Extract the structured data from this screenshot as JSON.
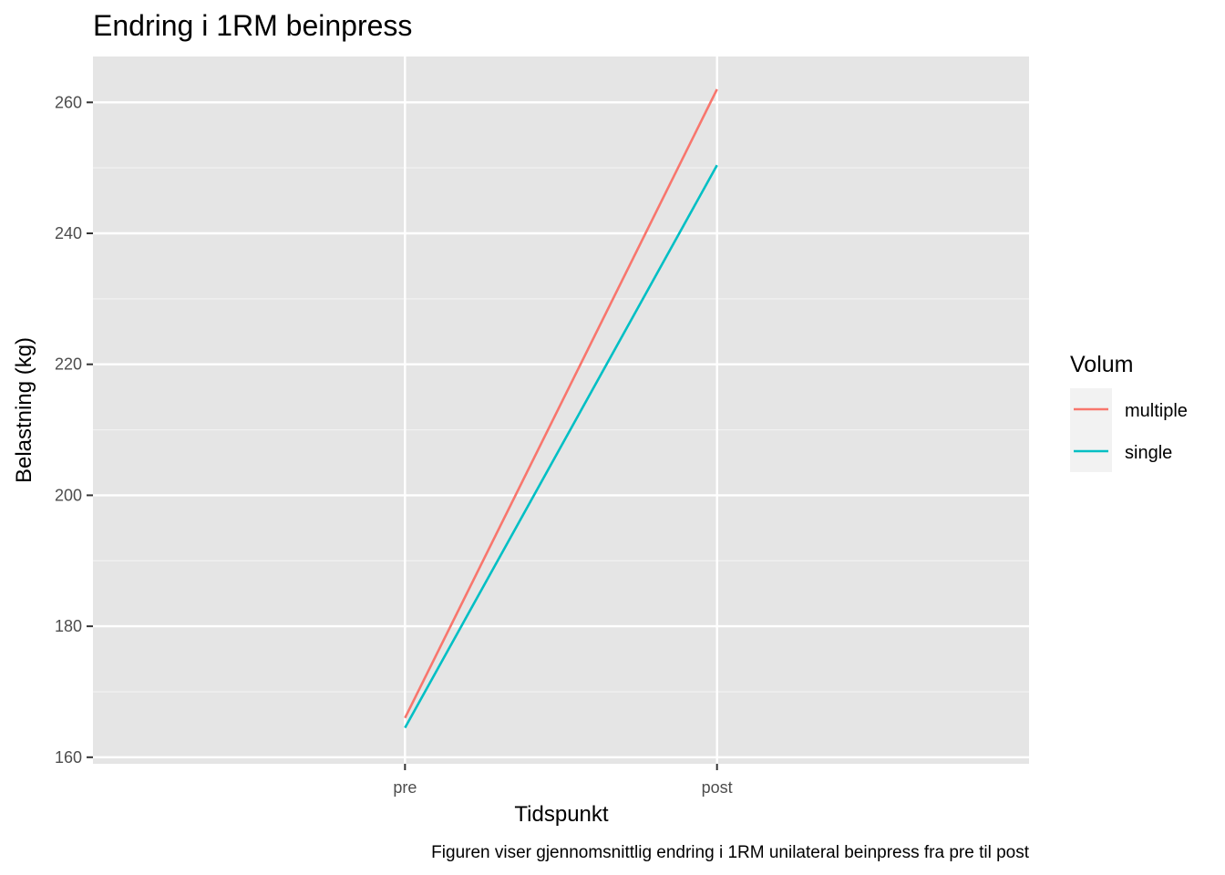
{
  "chart_data": {
    "type": "line",
    "title": "Endring i 1RM beinpress",
    "xlabel": "Tidspunkt",
    "ylabel": "Belastning (kg)",
    "caption": "Figuren viser gjennomsnittlig endring i 1RM unilateral beinpress fra pre til post",
    "categories": [
      "pre",
      "post"
    ],
    "ylim": [
      159,
      267
    ],
    "yticks": [
      160,
      180,
      200,
      220,
      240,
      260
    ],
    "grid": true,
    "legend": {
      "title": "Volum",
      "position": "right"
    },
    "series": [
      {
        "name": "multiple",
        "color": "#F8766D",
        "values": [
          166.0,
          262.0
        ]
      },
      {
        "name": "single",
        "color": "#00BFC4",
        "values": [
          164.5,
          250.4
        ]
      }
    ]
  }
}
